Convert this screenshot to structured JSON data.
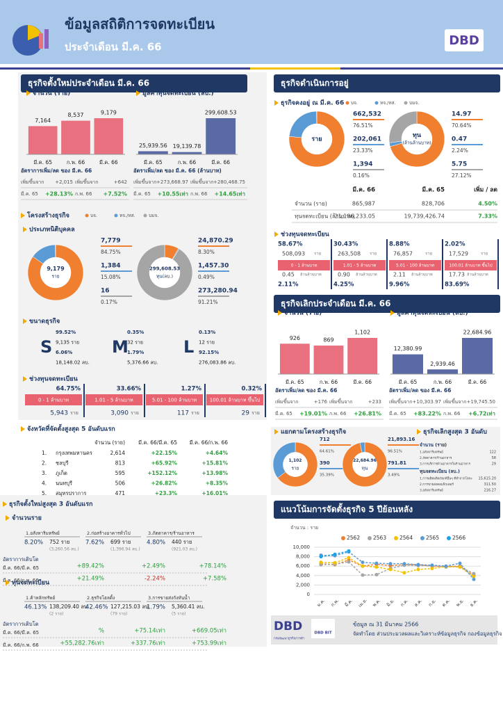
{
  "header": {
    "title": "ข้อมูลสถิติการจดทะเบียน",
    "subtitle": "ประจำเดือน มี.ค. 66",
    "logo": "DBD"
  },
  "new": {
    "title": "ธุรกิจตั้งใหม่ประจำเดือน มี.ค. 66",
    "count": {
      "type": "bar",
      "title": "จำนวน (ราย)",
      "categories": [
        "มี.ค. 65",
        "ก.พ. 66",
        "มี.ค. 66"
      ],
      "values": [
        7164,
        8537,
        9179
      ],
      "value_labels": [
        "7,164",
        "8,537",
        "9,179"
      ],
      "color": "#e8707f"
    },
    "capital": {
      "type": "bar",
      "title": "มูลค่าทุนจดทะเบียน (ลบ.)",
      "categories": [
        "มี.ค. 65",
        "ก.พ. 66",
        "มี.ค. 66"
      ],
      "values": [
        25939.56,
        19139.78,
        299608.53
      ],
      "value_labels": [
        "25,939.56",
        "19,139.78",
        "299,608.53"
      ],
      "color": "#5a6aa5"
    },
    "count_growth": {
      "title": "อัตราการเพิ่ม/ลด ของ มี.ค. 66",
      "rows": [
        [
          "เพิ่มขึ้นจาก",
          "+2,015",
          "เพิ่มขึ้นจาก",
          "+642"
        ],
        [
          "มี.ค. 65",
          "+28.13%",
          "ก.พ. 66",
          "+7.52%"
        ]
      ]
    },
    "capital_growth": {
      "title": "อัตราเพิ่ม/ลด ของ มี.ค. 66 (ล้านบาท)",
      "rows": [
        [
          "เพิ่มขึ้นจาก",
          "+273,668.97",
          "เพิ่มขึ้นจาก",
          "+280,468.75"
        ],
        [
          "มี.ค. 65",
          "+10.55เท่า",
          "ก.พ. 66",
          "+14.65เท่า"
        ]
      ]
    }
  },
  "structure": {
    "title": "โครงสร้างธุรกิจ",
    "legend": [
      "บจ.",
      "หจ./หส.",
      "บมจ."
    ],
    "colors": [
      "#f08030",
      "#5b9bd5",
      "#a5a5a5"
    ],
    "juristic_title": "ประเภทนิติบุคคล",
    "count": {
      "type": "pie",
      "center": [
        "9,179",
        "ราย"
      ],
      "values": [
        7779,
        1384,
        16
      ],
      "value_labels": [
        "7,779",
        "1,384",
        "16"
      ],
      "percents": [
        "84.75%",
        "15.08%",
        "0.17%"
      ]
    },
    "capital": {
      "type": "pie",
      "center": [
        "299,608.53",
        "ทุน(ลบ.)"
      ],
      "values": [
        24870.29,
        1457.3,
        273280.94
      ],
      "value_labels": [
        "24,870.29",
        "1,457.30",
        "273,280.94"
      ],
      "percents": [
        "8.30%",
        "0.49%",
        "91.21%"
      ]
    }
  },
  "size": {
    "title": "ขนาดธุรกิจ",
    "items": [
      {
        "letter": "S",
        "lines": [
          "99.52%",
          "9,135 ราย",
          "6.06%",
          "18,148.02 ลบ."
        ]
      },
      {
        "letter": "M",
        "lines": [
          "0.35%",
          "32 ราย",
          "1.79%",
          "5,376.66 ลบ."
        ]
      },
      {
        "letter": "L",
        "lines": [
          "0.13%",
          "12 ราย",
          "92.15%",
          "276,083.86 ลบ."
        ]
      }
    ]
  },
  "range": {
    "title": "ช่วงทุนจดทะเบียน",
    "unit": "ราย",
    "items": [
      {
        "percent": "64.75%",
        "label": "0 - 1 ล้านบาท",
        "count": "5,943"
      },
      {
        "percent": "33.66%",
        "label": "1.01 - 5 ล้านบาท",
        "count": "3,090"
      },
      {
        "percent": "1.27%",
        "label": "5.01 - 100 ล้านบาท",
        "count": "117"
      },
      {
        "percent": "0.32%",
        "label": "100.01 ล้านบาท ขึ้นไป",
        "count": "29"
      }
    ]
  },
  "provinces": {
    "title": "จังหวัดที่จัดตั้งสูงสุด 5 อันดับแรก",
    "headers": [
      "จำนวน (ราย)",
      "มี.ค. 66/มี.ค. 65",
      "มี.ค. 66/ก.พ. 66"
    ],
    "rows": [
      [
        "1.",
        "กรุงเทพมหานคร",
        "2,614",
        "+22.15%",
        "+4.64%"
      ],
      [
        "2.",
        "ชลบุรี",
        "813",
        "+65.92%",
        "+15.81%"
      ],
      [
        "3.",
        "ภูเก็ต",
        "595",
        "+152.12%",
        "+13.98%"
      ],
      [
        "4.",
        "นนทบุรี",
        "506",
        "+26.82%",
        "+8.35%"
      ],
      [
        "5.",
        "สมุทรปราการ",
        "471",
        "+23.3%",
        "+16.01%"
      ]
    ]
  },
  "top3": {
    "title": "ธุรกิจตั้งใหม่สูงสุด 3 อันดับแรก",
    "count": {
      "title": "จำนวนราย",
      "items": [
        {
          "name": "1.อสังหาริมทรัพย์",
          "percent": "8.20%",
          "main": "752 ราย",
          "sub": "(3,260.56 ลบ.)"
        },
        {
          "name": "2.ก่อสร้างอาคารทั่วไป",
          "percent": "7.62%",
          "main": "699 ราย",
          "sub": "(1,396.94 ลบ.)"
        },
        {
          "name": "3.ภัตตาคาร/ร้านอาหาร",
          "percent": "4.80%",
          "main": "440 ราย",
          "sub": "(921.03 ลบ.)"
        }
      ],
      "growth_title": "อัตราการเติบโต",
      "growth_rows": [
        {
          "label": "มี.ค. 66/มี.ค. 65",
          "values": [
            "+89.42%",
            "+2.49%",
            "+78.14%"
          ]
        },
        {
          "label": "มี.ค. 66/ก.พ. 66",
          "values": [
            "+21.49%",
            "-2.24%",
            "+7.58%"
          ]
        }
      ]
    },
    "capital": {
      "title": "ทุนจดทะเบียน",
      "items": [
        {
          "name": "1.ค้าหลักทรัพย์",
          "percent": "46.13%",
          "main": "138,209.40 ลบ.",
          "sub": "(2 ราย)"
        },
        {
          "name": "2.ธุรกิจโฮลดิ้ง",
          "percent": "42.46%",
          "main": "127,215.03 ลบ.",
          "sub": "(79 ราย)"
        },
        {
          "name": "3.การขายส่งกังหันน้ำ",
          "percent": "1.79%",
          "main": "5,360.41 ลบ.",
          "sub": "(5 ราย)"
        }
      ],
      "growth_title": "อัตราการเติบโต",
      "growth_rows": [
        {
          "label": "มี.ค. 66/มี.ค. 65",
          "values": [
            "%",
            "+75.14เท่า",
            "+669.05เท่า"
          ]
        },
        {
          "label": "มี.ค. 66/ก.พ. 66",
          "values": [
            "+55,282.76เท่า",
            "+337.76เท่า",
            "+753.99เท่า"
          ]
        }
      ]
    }
  },
  "operating": {
    "title": "ธุรกิจดำเนินการอยู่",
    "sub": "ธุรกิจคงอยู่ ณ มี.ค. 66",
    "count": {
      "type": "pie",
      "center": [
        "ราย"
      ],
      "values": [
        662532,
        202061,
        1394
      ],
      "value_labels": [
        "662,532",
        "202,061",
        "1,394"
      ],
      "percents": [
        "76.51%",
        "23.33%",
        "0.16%"
      ]
    },
    "capital": {
      "type": "pie",
      "center": [
        "ทุน",
        "(ล้านล้านบาท)"
      ],
      "values": [
        14.97,
        0.47,
        5.75
      ],
      "value_labels": [
        "14.97",
        "0.47",
        "5.75"
      ],
      "percents": [
        "70.64%",
        "2.24%",
        "27.12%"
      ]
    },
    "table": {
      "headers": [
        "มี.ค. 66",
        "มี.ค. 65",
        "เพิ่ม / ลด"
      ],
      "rows": [
        [
          "จำนวน (ราย)",
          "865,987",
          "828,706",
          "4.50%"
        ],
        [
          "ทุนจดทะเบียน (ล้านบาท)",
          "21,186,233.05",
          "19,739,426.74",
          "7.33%"
        ]
      ]
    },
    "range": {
      "title": "ช่วงทุนจดทะเบียน",
      "unit_count": "ราย",
      "unit_capital": "ล้านล้านบาท",
      "items": [
        {
          "percent": "58.67%",
          "count": "508,093",
          "label": "0 - 1 ล้านบาท",
          "capital": "0.45",
          "capital_percent": "2.11%"
        },
        {
          "percent": "30.43%",
          "count": "263,508",
          "label": "1.01 - 5 ล้านบาท",
          "capital": "0.90",
          "capital_percent": "4.25%"
        },
        {
          "percent": "8.88%",
          "count": "76,857",
          "label": "5.01 - 100 ล้านบาท",
          "capital": "2.11",
          "capital_percent": "9.96%"
        },
        {
          "percent": "2.02%",
          "count": "17,529",
          "label": "100.01 ล้านบาท ขึ้นไป",
          "capital": "17.73",
          "capital_percent": "83.69%"
        }
      ]
    }
  },
  "closed": {
    "title": "ธุรกิจเลิกประจำเดือน มี.ค. 66",
    "count": {
      "type": "bar",
      "title": "จำนวน (ราย)",
      "categories": [
        "มี.ค. 65",
        "ก.พ. 66",
        "มี.ค. 66"
      ],
      "values": [
        926,
        869,
        1102
      ],
      "value_labels": [
        "926",
        "869",
        "1,102"
      ],
      "color": "#e8707f"
    },
    "capital": {
      "type": "bar",
      "title": "มูลค่าทุนจดทะเบียน (ลบ.)",
      "categories": [
        "มี.ค. 65",
        "ก.พ. 66",
        "มี.ค. 66"
      ],
      "values": [
        12380.99,
        2939.46,
        22684.96
      ],
      "value_labels": [
        "12,380.99",
        "2,939.46",
        "22,684.96"
      ],
      "color": "#5a6aa5"
    },
    "count_growth": {
      "title": "อัตราเพิ่ม/ลด ของ มี.ค. 66",
      "rows": [
        [
          "เพิ่มขึ้นจาก",
          "+176",
          "เพิ่มขึ้นจาก",
          "+233"
        ],
        [
          "มี.ค. 65",
          "+19.01%",
          "ก.พ. 66",
          "+26.81%"
        ]
      ]
    },
    "capital_growth": {
      "title": "อัตราเพิ่ม/ลด ของ มี.ค. 66",
      "rows": [
        [
          "เพิ่มขึ้นจาก",
          "+10,303.97",
          "เพิ่มขึ้นจาก",
          "+19,745.50"
        ],
        [
          "มี.ค. 65",
          "+83.22%",
          "ก.พ. 66",
          "+6.72เท่า"
        ]
      ]
    },
    "structure": {
      "title": "แยกตามโครงสร้างธุรกิจ",
      "count": {
        "type": "pie",
        "center": [
          "1,102",
          "ราย"
        ],
        "values": [
          712,
          390
        ],
        "value_labels": [
          "712",
          "390"
        ],
        "percents": [
          "64.61%",
          "35.39%"
        ]
      },
      "capital": {
        "type": "pie",
        "center": [
          "22,684.96",
          "ทุน"
        ],
        "values": [
          21893.16,
          791.81
        ],
        "value_labels": [
          "21,893.16",
          "791.81"
        ],
        "percents": [
          "96.51%",
          "3.49%"
        ]
      }
    },
    "top3": {
      "title": "ธุรกิจเลิกสูงสุด 3 อันดับ",
      "count": {
        "title": "จำนวน (ราย)",
        "items": [
          [
            "1.อสังหาริมทรัพย์",
            "122"
          ],
          [
            "2.ภัตตาคาร/ร้านอาหาร",
            "58"
          ],
          [
            "3.การบริการด้านอาหารในร้านอาหาร",
            "29"
          ]
        ]
      },
      "capital": {
        "title": "ทุนจดทะเบียน (ลบ.)",
        "items": [
          [
            "1.การผลิตผลิตภัณฑ์อื่นๆ ที่ทำจากโลหะ",
            "15,615.20"
          ],
          [
            "2.การขายส่งคอมพิวเตอร์",
            "311.50"
          ],
          [
            "3.อสังหาริมทรัพย์",
            "216.27"
          ]
        ]
      }
    }
  },
  "trend": {
    "type": "line",
    "title": "แนวโน้มการจัดตั้งธุรกิจ 5 ปีย้อนหลัง",
    "ylabel": "จำนวน : ราย",
    "categories": [
      "ม.ค.",
      "ก.พ.",
      "มี.ค.",
      "เม.ย.",
      "พ.ค.",
      "มิ.ย.",
      "ก.ค.",
      "ส.ค.",
      "ก.ย.",
      "ต.ค.",
      "พ.ย.",
      "ธ.ค."
    ],
    "ylim": [
      0,
      10000
    ],
    "yticks": [
      0,
      {
        "value": 2000,
        "label": "2,000"
      },
      {
        "value": 4000,
        "label": "4,000"
      },
      {
        "value": 6000,
        "label": "6,000"
      },
      {
        "value": 8000,
        "label": "8,000"
      },
      {
        "value": 10000,
        "label": "10,000"
      }
    ],
    "series": [
      {
        "name": "2562",
        "color": "#f08030",
        "values": [
          6500,
          6300,
          7300,
          6000,
          6400,
          6100,
          6300,
          6300,
          6000,
          5900,
          6000,
          4000
        ]
      },
      {
        "name": "2563",
        "color": "#a5a5a5",
        "values": [
          6300,
          6400,
          6900,
          4100,
          4200,
          5500,
          6200,
          6100,
          6100,
          5800,
          5900,
          4400
        ]
      },
      {
        "name": "2564",
        "color": "#f2c200",
        "values": [
          6800,
          6700,
          7800,
          6000,
          5800,
          5300,
          4600,
          5300,
          5500,
          5900,
          5800,
          3800
        ]
      },
      {
        "name": "2565",
        "color": "#5b9bd5",
        "values": [
          8300,
          8200,
          9000,
          6800,
          6600,
          6500,
          6500,
          6300,
          6200,
          6000,
          6600,
          3200
        ]
      },
      {
        "name": "2566",
        "color": "#1aa3e8",
        "values": [
          8000,
          8500,
          9200,
          null,
          null,
          null,
          null,
          null,
          null,
          null,
          null,
          null
        ]
      }
    ]
  },
  "footer": {
    "org": "กรมพัฒนาธุรกิจการค้า",
    "bit": "DBD BIT",
    "date": "ข้อมูล ณ  31 มีนาคม 2566",
    "by": "จัดทำโดย ส่วนประมวลผลและวิเคราะห์ข้อมูลธุรกิจ กองข้อมูลธุรกิจ"
  }
}
